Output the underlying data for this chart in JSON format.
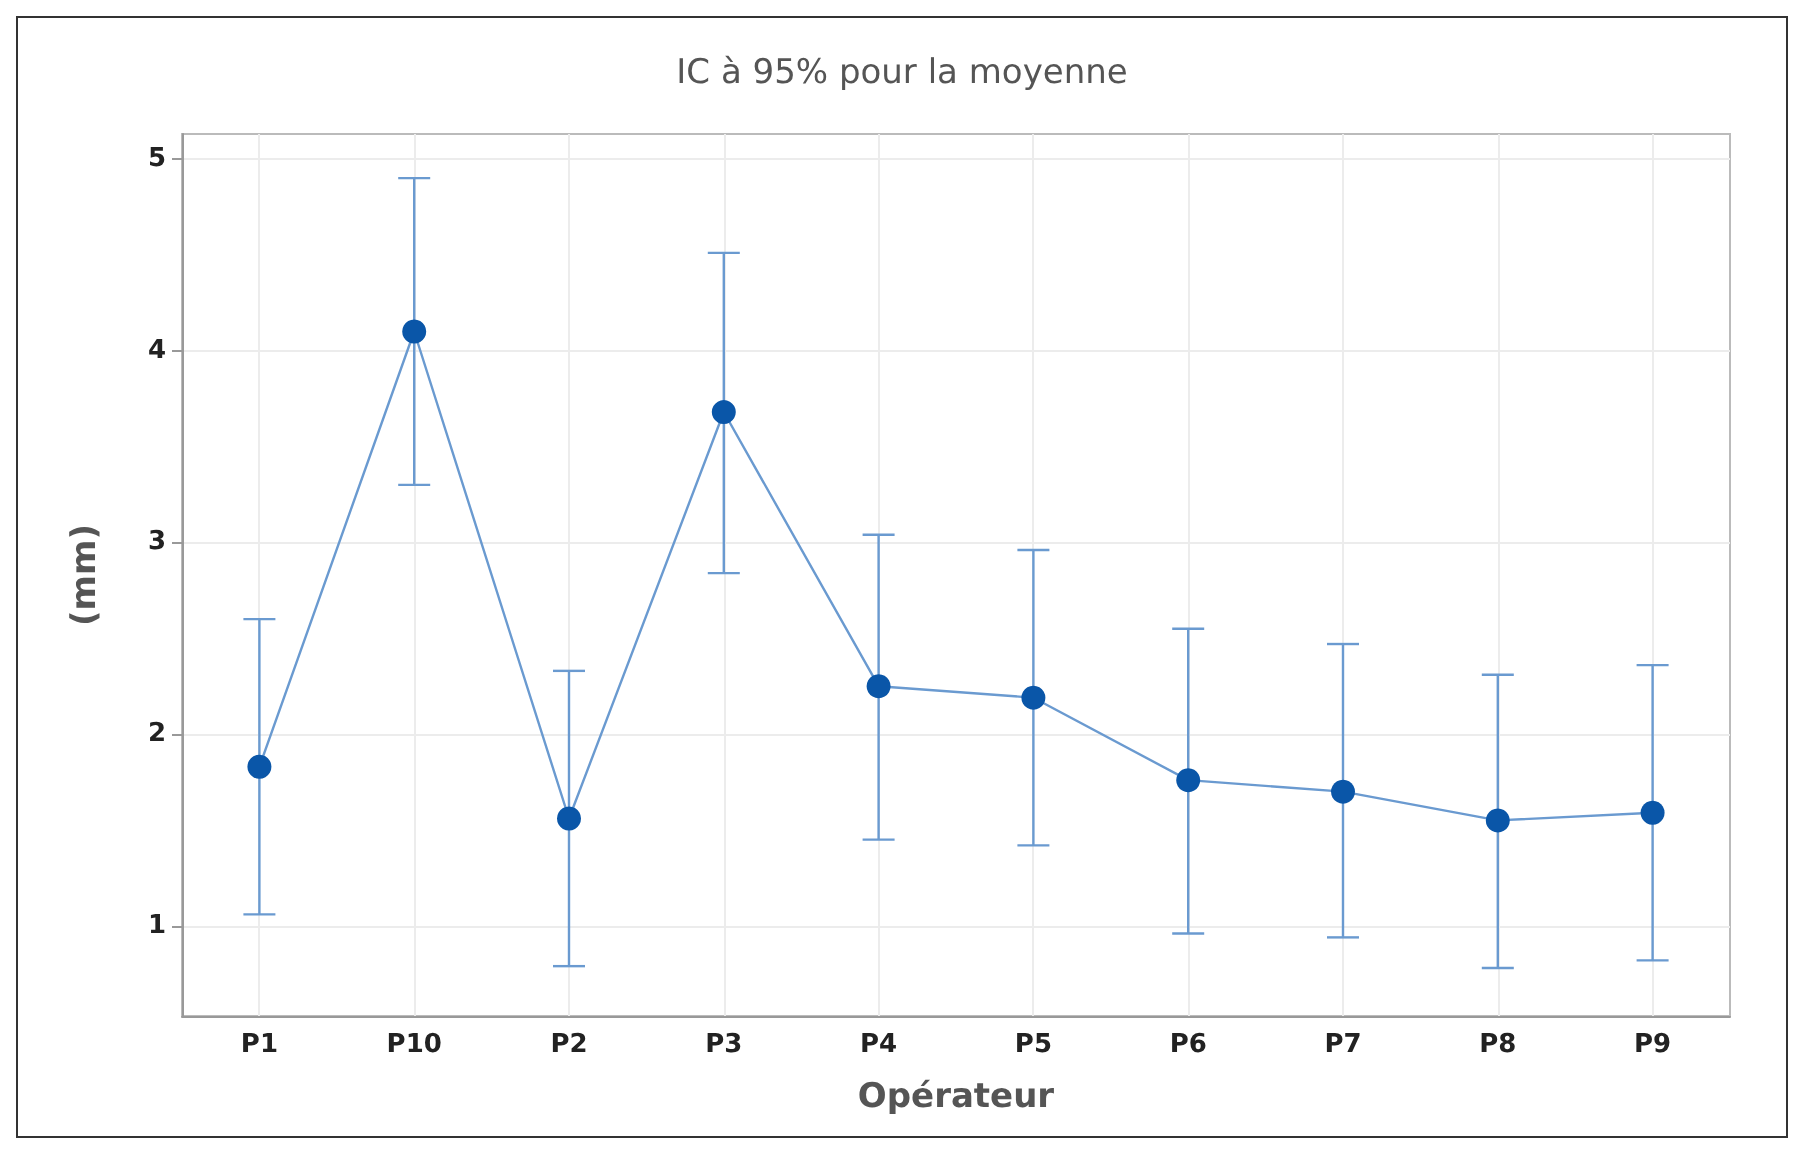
{
  "chart_data": {
    "type": "line",
    "title": "IC à 95% pour la moyenne",
    "xlabel": "Opérateur",
    "ylabel": "(mm)",
    "categories": [
      "P1",
      "P10",
      "P2",
      "P3",
      "P4",
      "P5",
      "P6",
      "P7",
      "P8",
      "P9"
    ],
    "series": [
      {
        "color": "#0a56a8",
        "values": [
          1.83,
          4.1,
          1.56,
          3.68,
          2.25,
          2.19,
          1.76,
          1.7,
          1.55,
          1.59
        ],
        "errors": [
          [
            1.06,
            2.6
          ],
          [
            3.3,
            4.9
          ],
          [
            0.79,
            2.33
          ],
          [
            2.84,
            4.51
          ],
          [
            1.45,
            3.04
          ],
          [
            1.42,
            2.96
          ],
          [
            0.96,
            2.55
          ],
          [
            0.94,
            2.47
          ],
          [
            0.78,
            2.31
          ],
          [
            0.82,
            2.36
          ]
        ]
      }
    ],
    "ylim": [
      0.53,
      5.13
    ],
    "yticks": [
      1,
      2,
      3,
      4,
      5
    ],
    "grid": true,
    "marker": "circle",
    "line_style": "solid"
  }
}
